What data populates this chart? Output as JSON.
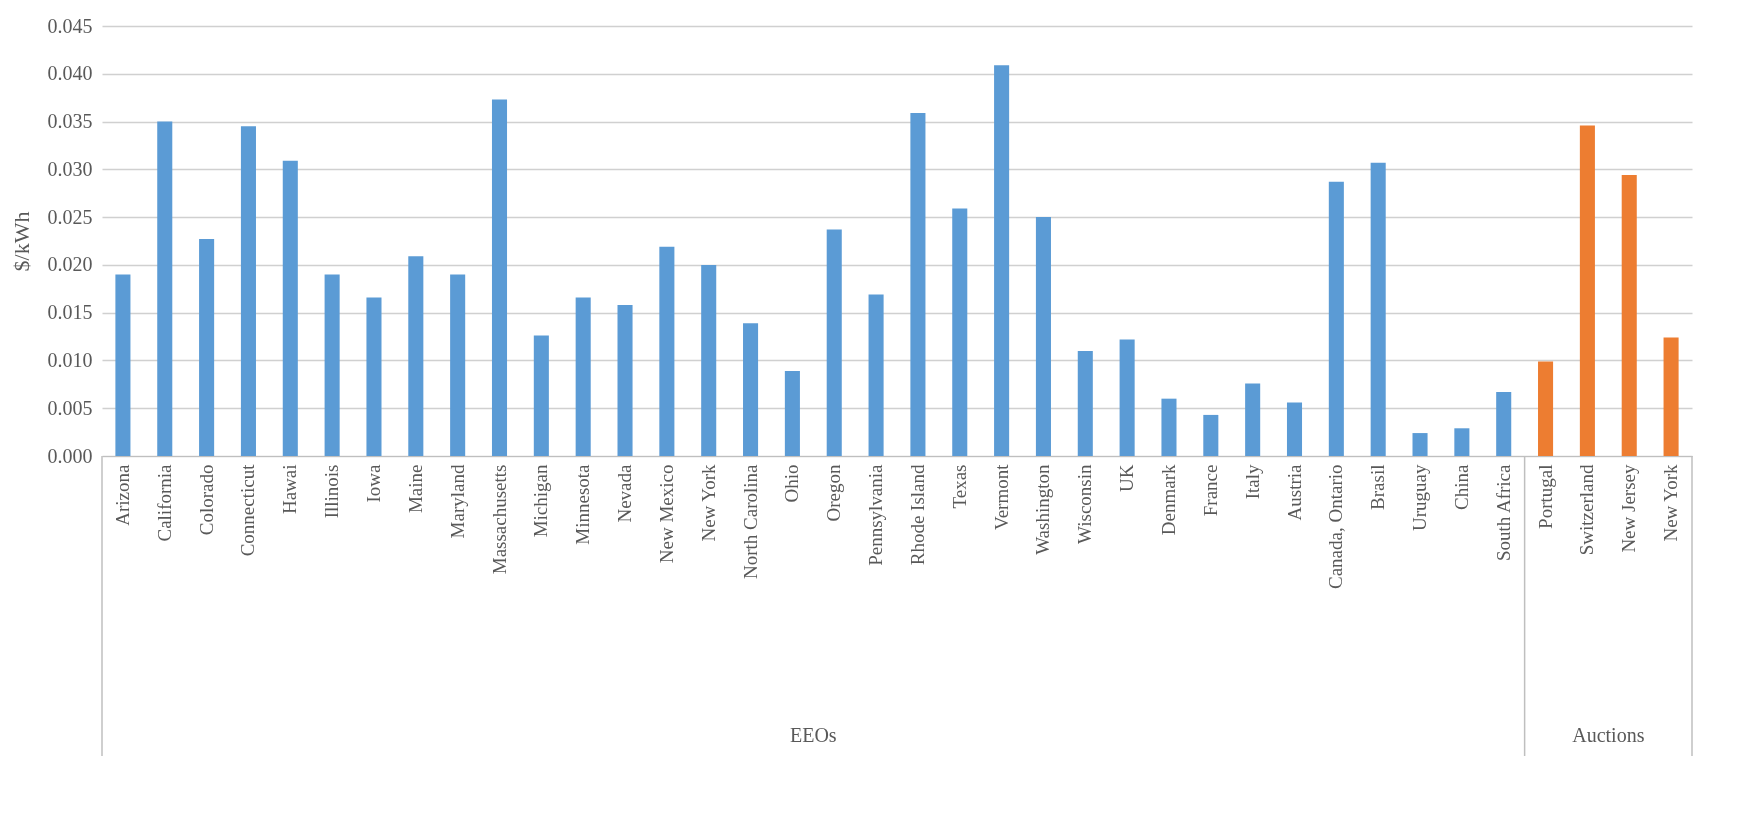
{
  "chart_data": {
    "type": "bar",
    "ylabel": "$/kWh",
    "categories": [
      "Arizona",
      "California",
      "Colorado",
      "Connecticut",
      "Hawai",
      "Illinois",
      "Iowa",
      "Maine",
      "Maryland",
      "Massachusetts",
      "Michigan",
      "Minnesota",
      "Nevada",
      "New Mexico",
      "New York",
      "North Carolina",
      "Ohio",
      "Oregon",
      "Pennsylvania",
      "Rhode Island",
      "Texas",
      "Vermont",
      "Washington",
      "Wisconsin",
      "UK",
      "Denmark",
      "France",
      "Italy",
      "Austria",
      "Canada, Ontario",
      "Brasil",
      "Uruguay",
      "China",
      "South Africa",
      "Portugal",
      "Switzerland",
      "New Jersey",
      "New York"
    ],
    "series": [
      {
        "color": "#5b9bd5",
        "values": [
          0.019,
          0.035,
          0.0227,
          0.0345,
          0.0309,
          0.019,
          0.0166,
          0.0209,
          0.019,
          0.0373,
          0.0126,
          0.0166,
          0.0158,
          0.0219,
          0.02,
          0.0139,
          0.0089,
          0.0237,
          0.0169,
          0.0359,
          0.0259,
          0.0409,
          0.025,
          0.011,
          0.0122,
          0.006,
          0.0043,
          0.0076,
          0.0056,
          0.0287,
          0.0307,
          0.0024,
          0.0029,
          0.0067,
          null,
          null,
          null,
          null
        ]
      },
      {
        "color": "#ed7d31",
        "values": [
          null,
          null,
          null,
          null,
          null,
          null,
          null,
          null,
          null,
          null,
          null,
          null,
          null,
          null,
          null,
          null,
          null,
          null,
          null,
          null,
          null,
          null,
          null,
          null,
          null,
          null,
          null,
          null,
          null,
          null,
          null,
          null,
          null,
          null,
          0.0099,
          0.0346,
          0.0294,
          0.0124
        ]
      }
    ],
    "ylim": [
      0,
      0.045
    ],
    "yticks": [
      {
        "value": 0,
        "label": "0.000"
      },
      0.005,
      {
        "value": 0.01,
        "label": "0.010"
      },
      0.015,
      {
        "value": 0.02,
        "label": "0.020"
      },
      0.025,
      {
        "value": 0.03,
        "label": "0.030"
      },
      0.035,
      {
        "value": 0.04,
        "label": "0.040"
      },
      0.045
    ],
    "grid": true,
    "annotations": [
      "EEOs",
      "Auctions"
    ]
  }
}
